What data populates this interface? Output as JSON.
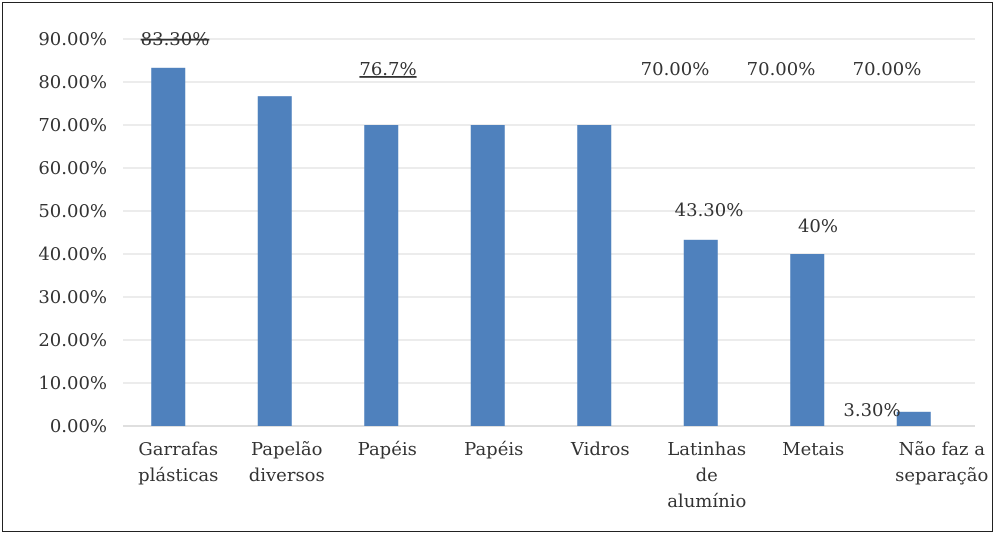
{
  "chart_data": {
    "type": "bar",
    "categories": [
      [
        "Garrafas",
        "plásticas"
      ],
      [
        "Papelão",
        "diversos"
      ],
      [
        "Papéis"
      ],
      [
        "Papéis"
      ],
      [
        "Vidros"
      ],
      [
        "Latinhas",
        "de",
        "alumínio"
      ],
      [
        "Metais"
      ],
      [
        "Não faz a",
        "separação"
      ]
    ],
    "values": [
      83.3,
      76.7,
      70.0,
      70.0,
      70.0,
      43.3,
      40.0,
      3.3
    ],
    "data_labels": [
      "83.30%",
      "76.7%",
      "70.00%",
      "70.00%",
      "70.00%",
      "43.30%",
      "40%",
      "3.30%"
    ],
    "y_ticks": [
      "0.00%",
      "10.00%",
      "20.00%",
      "30.00%",
      "40.00%",
      "50.00%",
      "60.00%",
      "70.00%",
      "80.00%",
      "90.00%"
    ],
    "ylim": [
      0,
      90
    ],
    "grid": true,
    "legend": "none",
    "bar_color": "#4f81bd",
    "title": "",
    "xlabel": "",
    "ylabel": ""
  }
}
